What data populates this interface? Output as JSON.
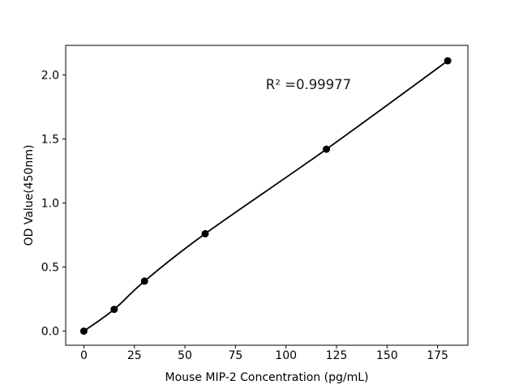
{
  "figure": {
    "background": "#ffffff",
    "border_color": "#000000"
  },
  "chart_data": {
    "type": "scatter",
    "x": [
      0,
      15,
      30,
      60,
      120,
      180
    ],
    "y": [
      0.0,
      0.17,
      0.39,
      0.76,
      1.42,
      2.11
    ],
    "fit_line": true,
    "r_squared": 0.99977,
    "annotation": {
      "text": "R² =0.99977",
      "x": 90,
      "y": 1.89
    },
    "title": "",
    "xlabel": "Mouse MIP-2 Concentration (pg/mL)",
    "ylabel": "OD Value(450nm)",
    "xticks": [
      0,
      25,
      50,
      75,
      100,
      125,
      150,
      175
    ],
    "ytick_labels": [
      "0.0",
      "0.5",
      "1.0",
      "1.5",
      "2.0"
    ],
    "xlim": [
      -9,
      190
    ],
    "ylim": [
      -0.11,
      2.23
    ],
    "grid": false,
    "legend": "none",
    "line_color": "#000000",
    "marker_color": "#000000"
  }
}
